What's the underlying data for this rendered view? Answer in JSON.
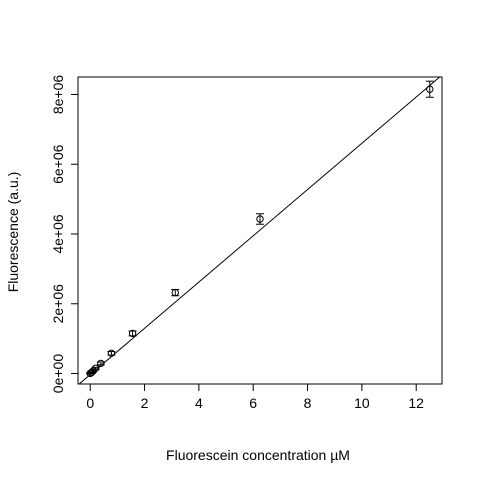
{
  "chart_data": {
    "type": "scatter",
    "title": "",
    "xlabel": "Fluorescein concentration µM",
    "ylabel": "Fluorescence (a.u.)",
    "xlim": [
      -0.45,
      12.95
    ],
    "ylim": [
      -300000,
      8500000
    ],
    "xticks": [
      {
        "value": 0,
        "label": "0"
      },
      {
        "value": 2,
        "label": "2"
      },
      {
        "value": 4,
        "label": "4"
      },
      {
        "value": 6,
        "label": "6"
      },
      {
        "value": 8,
        "label": "8"
      },
      {
        "value": 10,
        "label": "10"
      },
      {
        "value": 12,
        "label": "12"
      }
    ],
    "yticks": [
      {
        "value": 0,
        "label": "0e+00"
      },
      {
        "value": 2000000,
        "label": "2e+06"
      },
      {
        "value": 4000000,
        "label": "4e+06"
      },
      {
        "value": 6000000,
        "label": "6e+06"
      },
      {
        "value": 8000000,
        "label": "8e+06"
      }
    ],
    "series": [
      {
        "points": [
          {
            "x": 0.0,
            "y": 5000,
            "err": 20000
          },
          {
            "x": 0.05,
            "y": 30000,
            "err": 20000
          },
          {
            "x": 0.1,
            "y": 70000,
            "err": 25000
          },
          {
            "x": 0.2,
            "y": 150000,
            "err": 30000
          },
          {
            "x": 0.39,
            "y": 290000,
            "err": 40000
          },
          {
            "x": 0.78,
            "y": 580000,
            "err": 50000
          },
          {
            "x": 1.56,
            "y": 1150000,
            "err": 70000
          },
          {
            "x": 3.13,
            "y": 2320000,
            "err": 90000
          },
          {
            "x": 6.25,
            "y": 4430000,
            "err": 150000
          },
          {
            "x": 12.5,
            "y": 8150000,
            "err": 230000
          }
        ]
      }
    ],
    "fit_line": {
      "intercept": -30000,
      "slope": 663000
    },
    "grid": false,
    "legend": "none"
  }
}
